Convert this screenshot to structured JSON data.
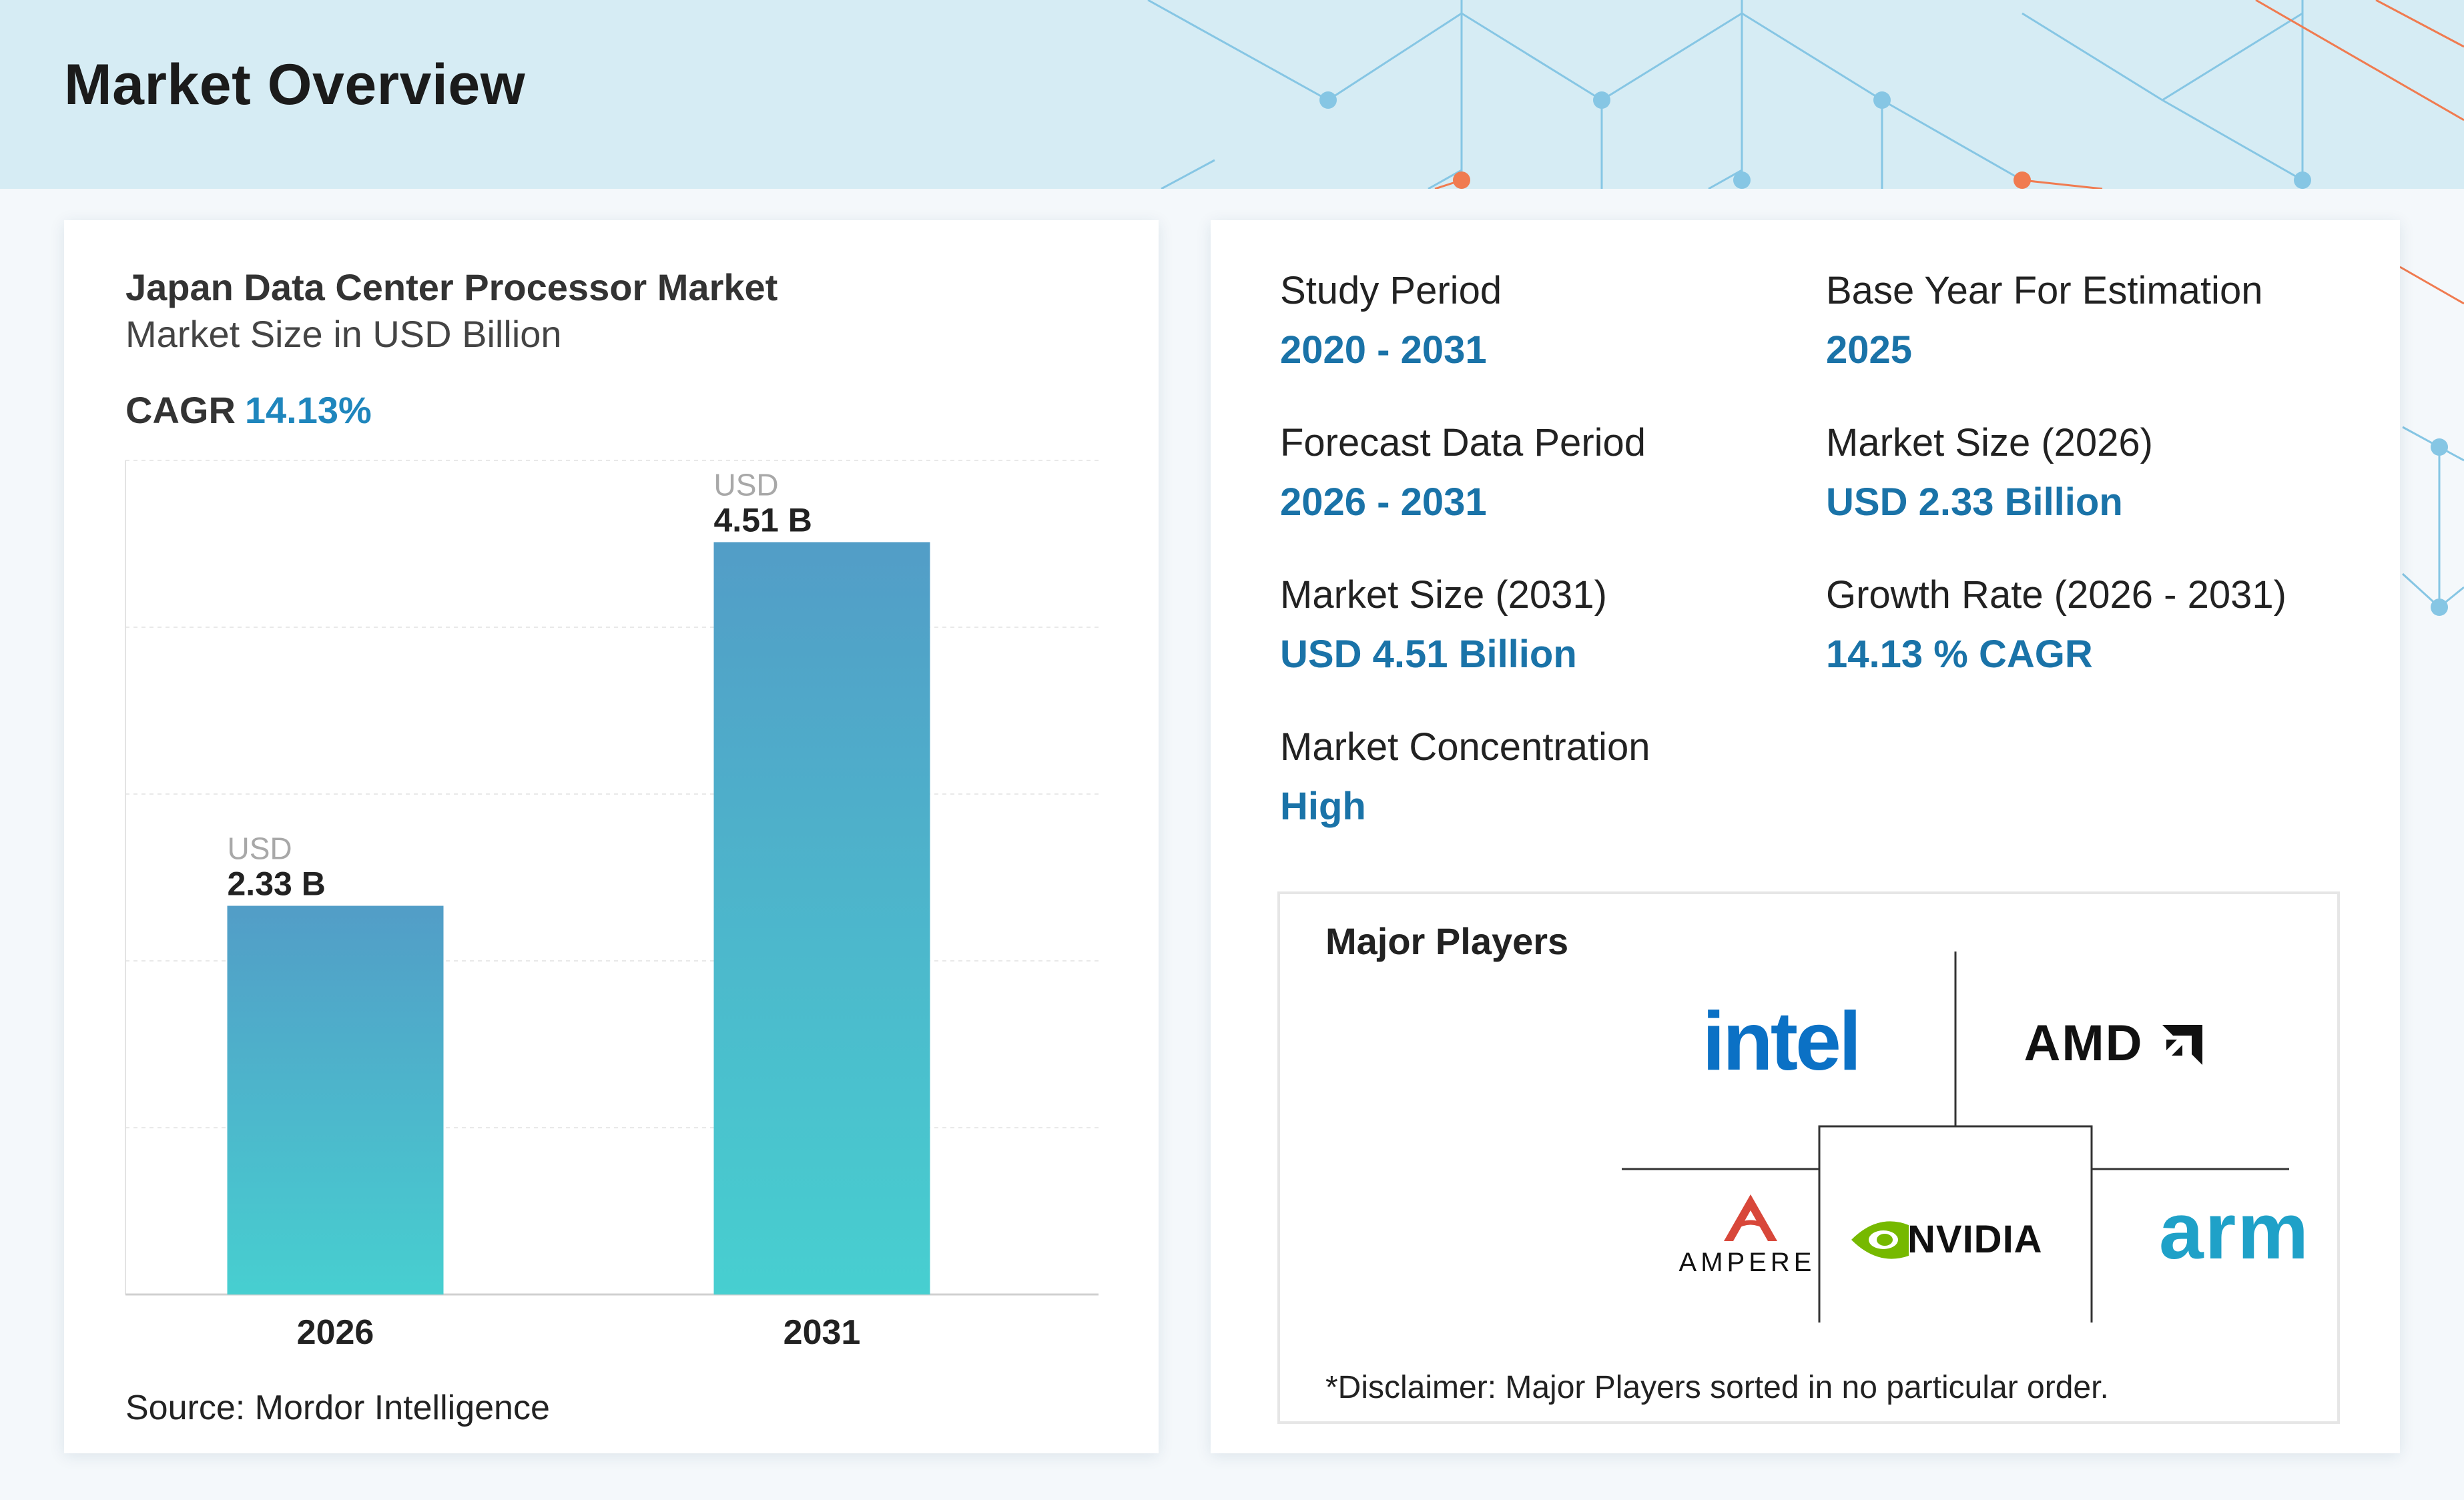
{
  "header": {
    "title": "Market Overview"
  },
  "chart_card": {
    "title": "Japan Data Center Processor Market",
    "subtitle": "Market Size in USD Billion",
    "cagr_label": "CAGR",
    "cagr_value": "14.13%",
    "source": "Source: Mordor Intelligence"
  },
  "chart_data": {
    "type": "bar",
    "title": "Japan Data Center Processor Market",
    "subtitle": "Market Size in USD Billion",
    "categories": [
      "2026",
      "2031"
    ],
    "values": [
      2.33,
      4.51
    ],
    "value_prefix": "USD",
    "value_labels": [
      "2.33 B",
      "4.51 B"
    ],
    "ylim": [
      0,
      5
    ],
    "grid": true,
    "colors": {
      "bar_top": "#529dc7",
      "bar_bottom": "#47cfd0"
    }
  },
  "stats": [
    {
      "label": "Study Period",
      "value": "2020 - 2031"
    },
    {
      "label": "Base Year For Estimation",
      "value": "2025"
    },
    {
      "label": "Forecast Data Period",
      "value": "2026 - 2031"
    },
    {
      "label": "Market Size (2026)",
      "value": "USD 2.33 Billion"
    },
    {
      "label": "Market Size (2031)",
      "value": "USD 4.51 Billion"
    },
    {
      "label": "Growth Rate (2026 - 2031)",
      "value": "14.13 % CAGR"
    },
    {
      "label": "Market Concentration",
      "value": "High"
    }
  ],
  "players": {
    "title": "Major Players",
    "logos": [
      "intel",
      "AMD",
      "AMPERE",
      "NVIDIA",
      "arm"
    ],
    "disclaimer": "*Disclaimer: Major Players sorted in no particular order."
  },
  "colors": {
    "accent": "#1a73a8",
    "header_bg": "#d6ecf4",
    "network_blue": "#7fc3e3",
    "network_orange": "#f07b50"
  }
}
